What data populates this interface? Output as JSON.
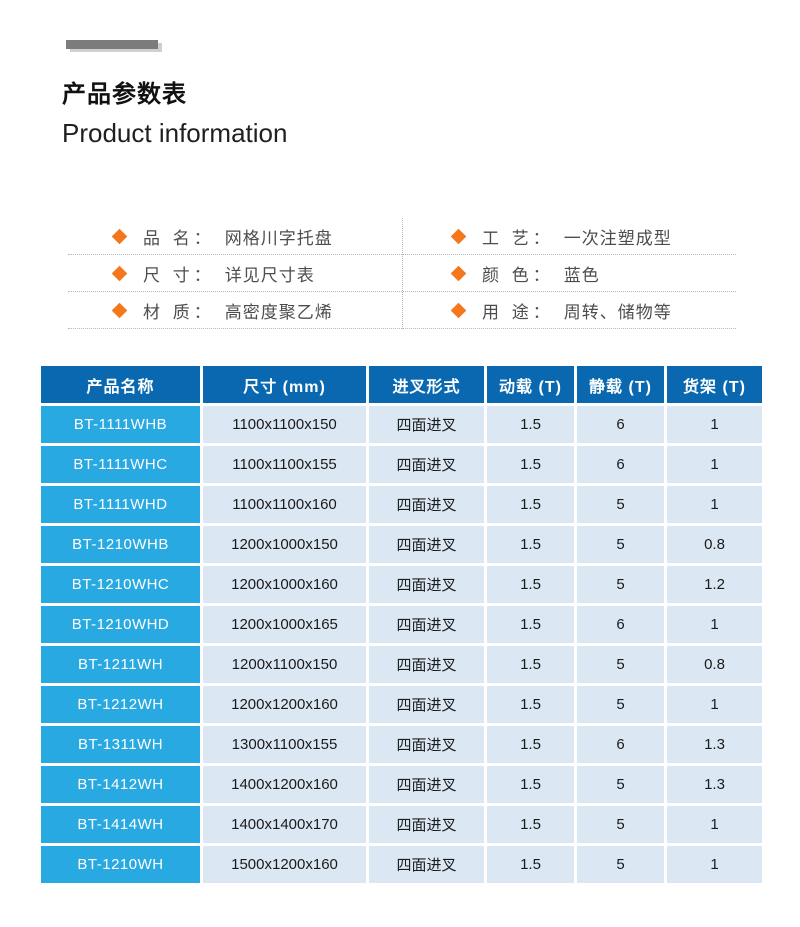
{
  "header": {
    "title_cn": "产品参数表",
    "title_en": "Product information"
  },
  "attributes": {
    "bullet_color": "#f4771c",
    "left": [
      {
        "label": "品 名：",
        "value": "网格川字托盘"
      },
      {
        "label": "尺 寸：",
        "value": "详见尺寸表"
      },
      {
        "label": "材 质：",
        "value": "高密度聚乙烯"
      }
    ],
    "right": [
      {
        "label": "工 艺：",
        "value": "一次注塑成型"
      },
      {
        "label": "颜 色：",
        "value": "蓝色"
      },
      {
        "label": "用 途：",
        "value": "周转、储物等"
      }
    ]
  },
  "table": {
    "colors": {
      "header_bg": "#0968b0",
      "name_column_bg": "#29a9e1",
      "cell_bg": "#dbe8f4"
    },
    "headers": [
      "产品名称",
      "尺寸 (mm)",
      "进叉形式",
      "动载 (T)",
      "静载 (T)",
      "货架 (T)"
    ],
    "rows": [
      {
        "code": "BT-1111WHB",
        "size": "1100x1100x150",
        "fork": "四面进叉",
        "dynamic_load": "1.5",
        "static_load": "6",
        "rack_load": "1"
      },
      {
        "code": "BT-1111WHC",
        "size": "1100x1100x155",
        "fork": "四面进叉",
        "dynamic_load": "1.5",
        "static_load": "6",
        "rack_load": "1"
      },
      {
        "code": "BT-1111WHD",
        "size": "1100x1100x160",
        "fork": "四面进叉",
        "dynamic_load": "1.5",
        "static_load": "5",
        "rack_load": "1"
      },
      {
        "code": "BT-1210WHB",
        "size": "1200x1000x150",
        "fork": "四面进叉",
        "dynamic_load": "1.5",
        "static_load": "5",
        "rack_load": "0.8"
      },
      {
        "code": "BT-1210WHC",
        "size": "1200x1000x160",
        "fork": "四面进叉",
        "dynamic_load": "1.5",
        "static_load": "5",
        "rack_load": "1.2"
      },
      {
        "code": "BT-1210WHD",
        "size": "1200x1000x165",
        "fork": "四面进叉",
        "dynamic_load": "1.5",
        "static_load": "6",
        "rack_load": "1"
      },
      {
        "code": "BT-1211WH",
        "size": "1200x1100x150",
        "fork": "四面进叉",
        "dynamic_load": "1.5",
        "static_load": "5",
        "rack_load": "0.8"
      },
      {
        "code": "BT-1212WH",
        "size": "1200x1200x160",
        "fork": "四面进叉",
        "dynamic_load": "1.5",
        "static_load": "5",
        "rack_load": "1"
      },
      {
        "code": "BT-1311WH",
        "size": "1300x1100x155",
        "fork": "四面进叉",
        "dynamic_load": "1.5",
        "static_load": "6",
        "rack_load": "1.3"
      },
      {
        "code": "BT-1412WH",
        "size": "1400x1200x160",
        "fork": "四面进叉",
        "dynamic_load": "1.5",
        "static_load": "5",
        "rack_load": "1.3"
      },
      {
        "code": "BT-1414WH",
        "size": "1400x1400x170",
        "fork": "四面进叉",
        "dynamic_load": "1.5",
        "static_load": "5",
        "rack_load": "1"
      },
      {
        "code": "BT-1210WH",
        "size": "1500x1200x160",
        "fork": "四面进叉",
        "dynamic_load": "1.5",
        "static_load": "5",
        "rack_load": "1"
      }
    ]
  }
}
